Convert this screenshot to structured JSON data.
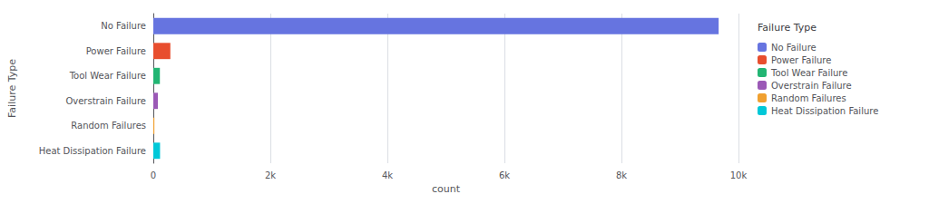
{
  "chart_data": {
    "type": "bar",
    "orientation": "horizontal",
    "categories": [
      "No Failure",
      "Power Failure",
      "Tool Wear Failure",
      "Overstrain Failure",
      "Random Failures",
      "Heat Dissipation Failure"
    ],
    "values": [
      9661,
      291,
      112,
      78,
      18,
      115
    ],
    "colors": [
      "#6674e0",
      "#e84e2e",
      "#22b573",
      "#9b59b6",
      "#f0a030",
      "#00c8d8"
    ],
    "xlabel": "count",
    "ylabel": "Failure Type",
    "xlim": [
      0,
      10000
    ],
    "xticks": [
      0,
      {
        "value": 2000,
        "label": "2k"
      },
      {
        "value": 4000,
        "label": "4k"
      },
      {
        "value": 6000,
        "label": "6k"
      },
      {
        "value": 8000,
        "label": "8k"
      },
      {
        "value": 10000,
        "label": "10k"
      }
    ],
    "grid": true,
    "legend": "right",
    "legend_title": "Failure Type"
  }
}
